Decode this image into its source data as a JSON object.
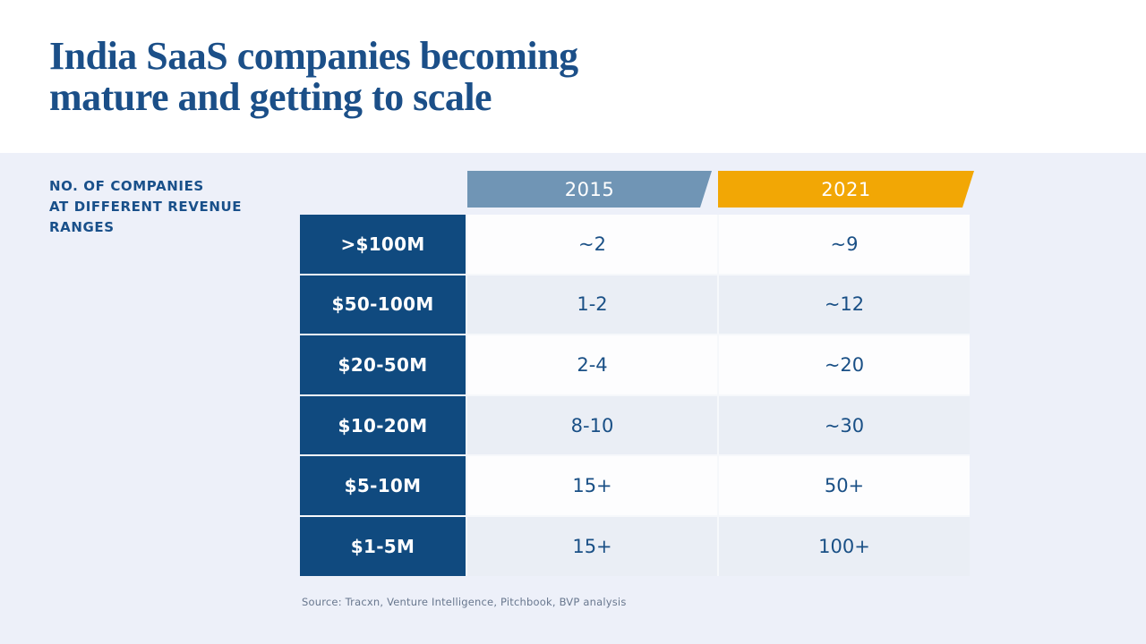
{
  "title": {
    "line1": "India SaaS companies becoming",
    "line2": "mature and getting to scale"
  },
  "caption": {
    "line1": "NO. OF COMPANIES",
    "line2": "AT DIFFERENT REVENUE",
    "line3": "RANGES"
  },
  "header": {
    "col2015": "2015",
    "col2021": "2021"
  },
  "table": {
    "rows": [
      {
        "label": ">$100M",
        "y2015": "~2",
        "y2021": "~9"
      },
      {
        "label": "$50-100M",
        "y2015": "1-2",
        "y2021": "~12"
      },
      {
        "label": "$20-50M",
        "y2015": "2-4",
        "y2021": "~20"
      },
      {
        "label": "$10-20M",
        "y2015": "8-10",
        "y2021": "~30"
      },
      {
        "label": "$5-10M",
        "y2015": "15+",
        "y2021": "50+"
      },
      {
        "label": "$1-5M",
        "y2015": "15+",
        "y2021": "100+"
      }
    ]
  },
  "source": "Source: Tracxn, Venture Intelligence, Pitchbook, BVP analysis",
  "colors": {
    "title_blue": "#1b4f88",
    "label_navy": "#104a7f",
    "header_2015_slate": "#7095b5",
    "header_2021_orange": "#f2a705",
    "bottom_background": "#edf0f9",
    "even_row_tint": "#eaeef5",
    "value_text": "#1a5086",
    "source_text": "#68778e"
  },
  "chart_data": {
    "type": "table",
    "title": "India SaaS companies becoming mature and getting to scale",
    "row_header_label": "NO. OF COMPANIES AT DIFFERENT REVENUE RANGES",
    "categories": [
      ">$100M",
      "$50-100M",
      "$20-50M",
      "$10-20M",
      "$5-10M",
      "$1-5M"
    ],
    "series": [
      {
        "name": "2015",
        "values": [
          "~2",
          "1-2",
          "2-4",
          "8-10",
          "15+",
          "15+"
        ]
      },
      {
        "name": "2021",
        "values": [
          "~9",
          "~12",
          "~20",
          "~30",
          "50+",
          "100+"
        ]
      }
    ],
    "source": "Source: Tracxn, Venture Intelligence, Pitchbook, BVP analysis"
  }
}
